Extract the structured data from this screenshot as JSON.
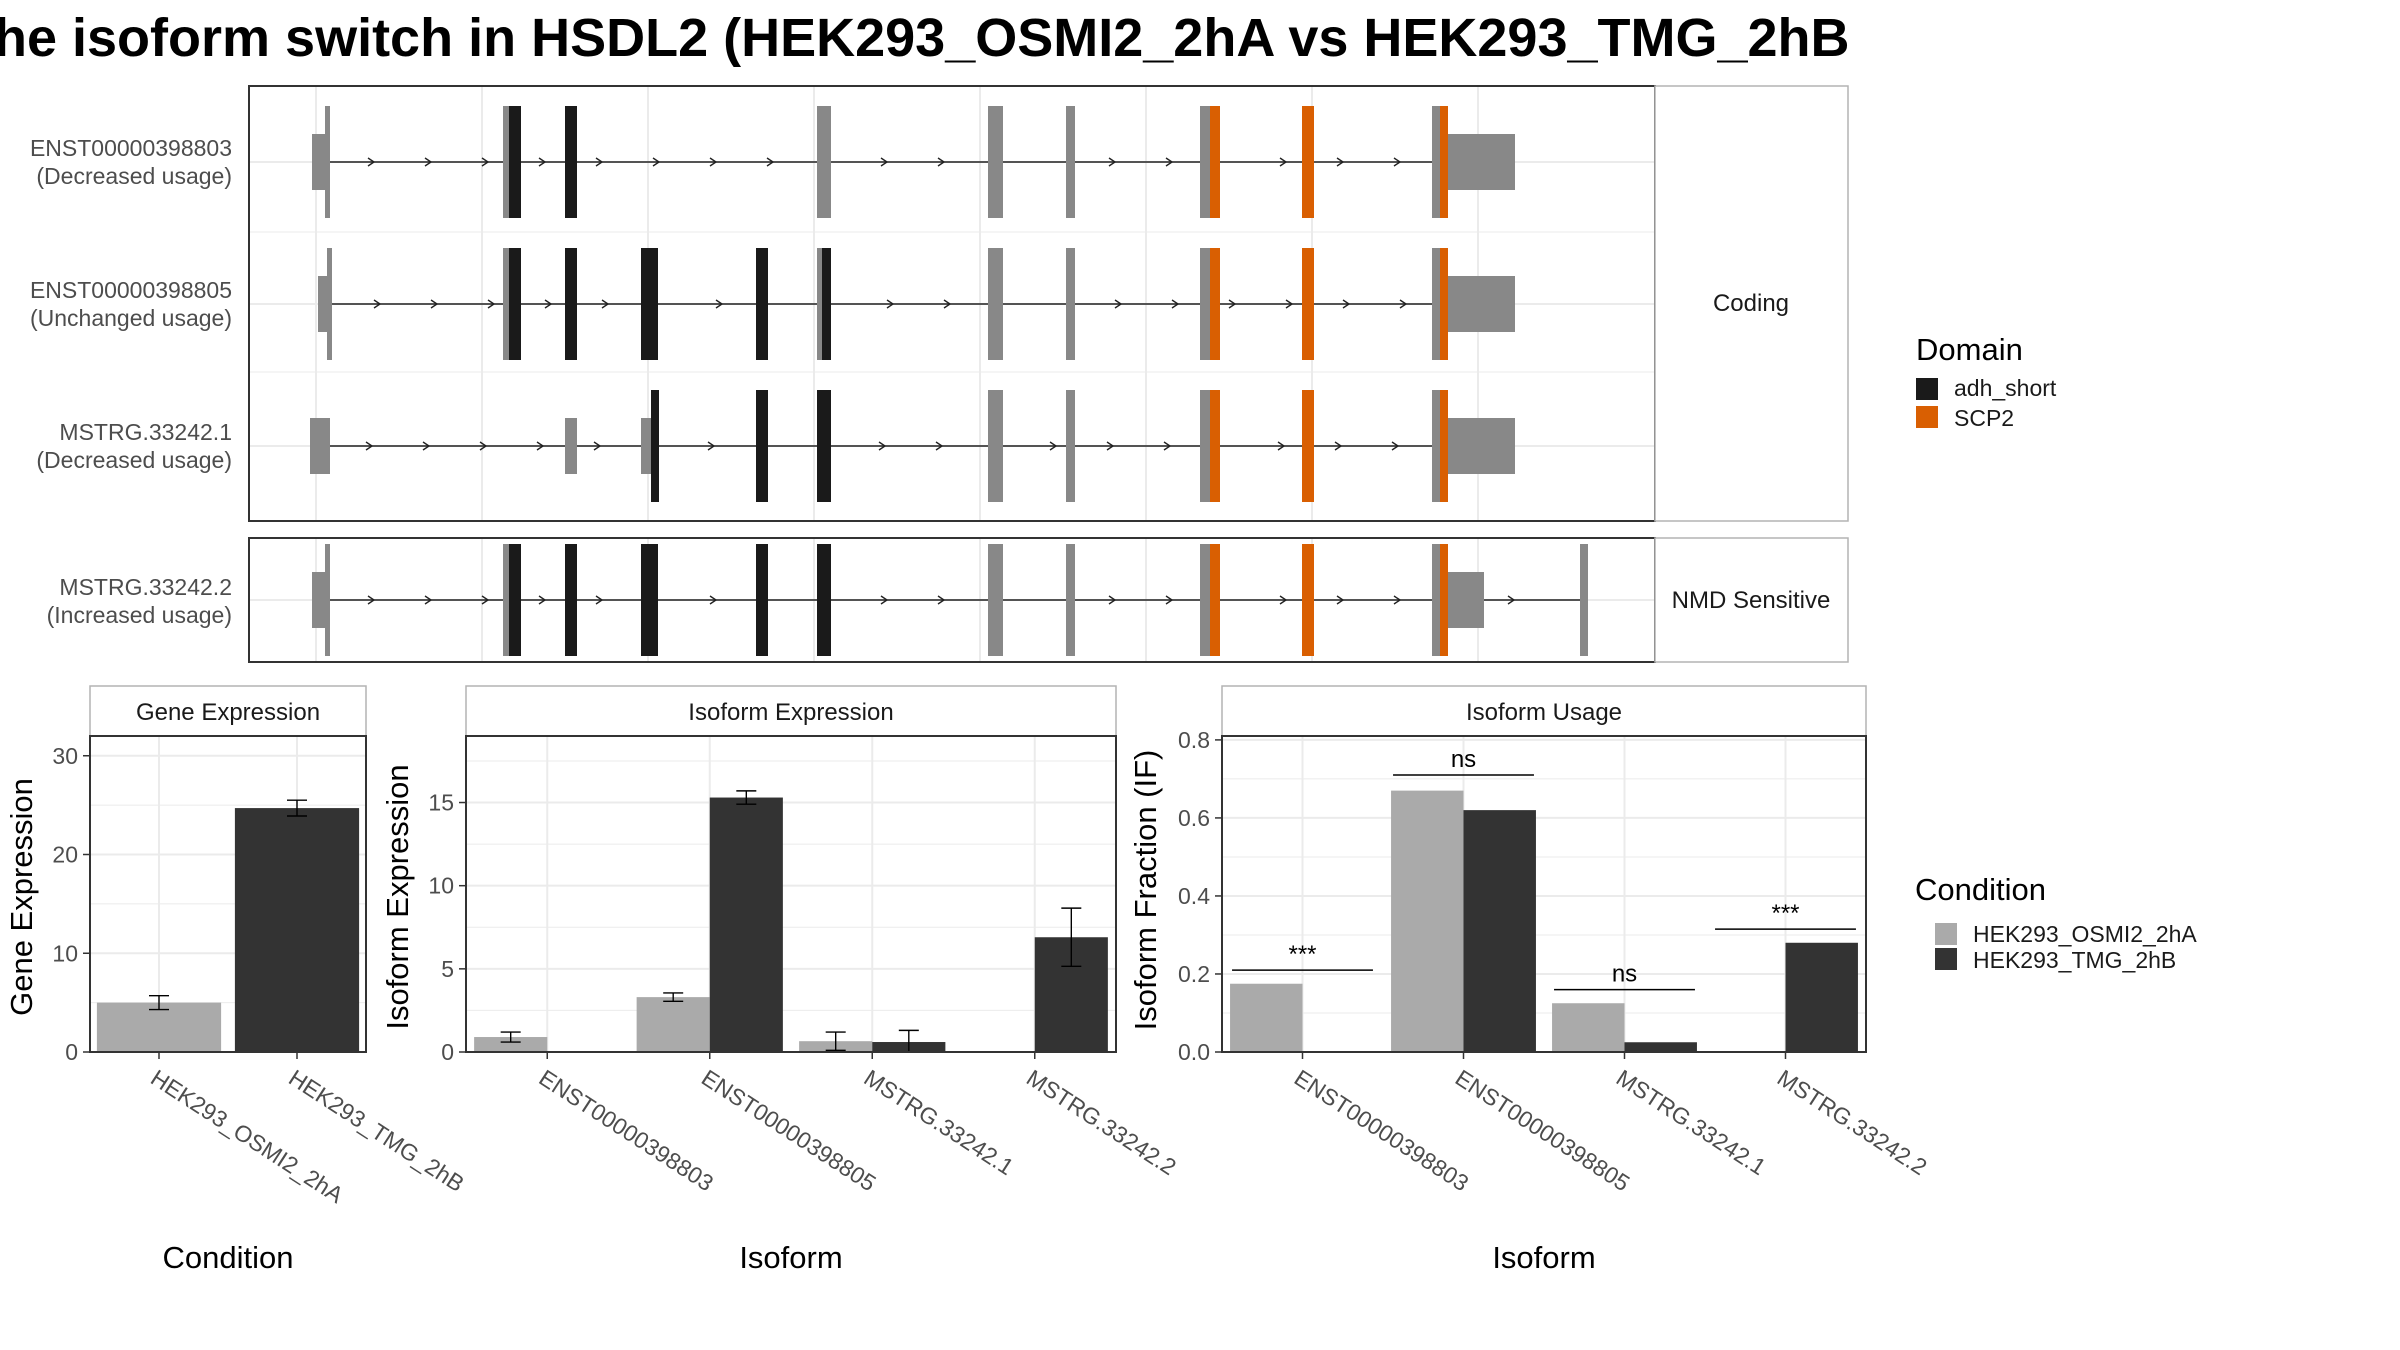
{
  "title": "he isoform switch in HSDL2 (HEK293_OSMI2_2hA vs HEK293_TMG_2hB",
  "colors": {
    "utr": "#888888",
    "adh_short": "#1a1a1a",
    "SCP2": "#d95f02",
    "cond1": "#aaaaaa",
    "cond2": "#333333",
    "panel_border": "#333333",
    "strip_border": "#b3b3b3",
    "grid": "#ebebeb"
  },
  "structure": {
    "coding_label": "Coding",
    "nmd_label": "NMD Sensitive",
    "transcripts": [
      {
        "id": "ENST00000398803",
        "usage": "(Decreased usage)",
        "group": "coding"
      },
      {
        "id": "ENST00000398805",
        "usage": "(Unchanged usage)",
        "group": "coding"
      },
      {
        "id": "MSTRG.33242.1",
        "usage": "(Decreased usage)",
        "group": "coding"
      },
      {
        "id": "MSTRG.33242.2",
        "usage": "(Increased usage)",
        "group": "nmd"
      }
    ]
  },
  "legend_domain": {
    "title": "Domain",
    "items": [
      {
        "label": "adh_short",
        "color": "#1a1a1a"
      },
      {
        "label": "SCP2",
        "color": "#d95f02"
      }
    ]
  },
  "legend_condition": {
    "title": "Condition",
    "items": [
      {
        "label": "HEK293_OSMI2_2hA",
        "color": "#aaaaaa"
      },
      {
        "label": "HEK293_TMG_2hB",
        "color": "#333333"
      }
    ]
  },
  "chart_data": [
    {
      "type": "bar",
      "title": "Gene Expression",
      "xlabel": "Condition",
      "ylabel": "Gene Expression",
      "ylim": [
        0,
        32
      ],
      "yticks": [
        0,
        10,
        20,
        30
      ],
      "categories": [
        "HEK293_OSMI2_2hA",
        "HEK293_TMG_2hB"
      ],
      "series": [
        {
          "name": "HEK293_OSMI2_2hA",
          "values": [
            5.0,
            null
          ],
          "err": [
            0.7,
            null
          ]
        },
        {
          "name": "HEK293_TMG_2hB",
          "values": [
            null,
            24.7
          ],
          "err": [
            null,
            0.8
          ]
        }
      ],
      "grid": true
    },
    {
      "type": "bar",
      "title": "Isoform Expression",
      "xlabel": "Isoform",
      "ylabel": "Isoform Expression",
      "ylim": [
        0,
        19
      ],
      "yticks": [
        0,
        5,
        10,
        15
      ],
      "categories": [
        "ENST00000398803",
        "ENST00000398805",
        "MSTRG.33242.1",
        "MSTRG.33242.2"
      ],
      "series": [
        {
          "name": "HEK293_OSMI2_2hA",
          "values": [
            0.9,
            3.3,
            0.65,
            0.0
          ],
          "err": [
            0.3,
            0.25,
            0.55,
            0.0
          ]
        },
        {
          "name": "HEK293_TMG_2hB",
          "values": [
            0.0,
            15.3,
            0.6,
            6.9
          ],
          "err": [
            0.0,
            0.4,
            0.7,
            1.75
          ]
        }
      ],
      "grid": true
    },
    {
      "type": "bar",
      "title": "Isoform Usage",
      "xlabel": "Isoform",
      "ylabel": "Isoform Fraction (IF)",
      "ylim": [
        0,
        0.81
      ],
      "yticks": [
        0.0,
        0.2,
        0.4,
        0.6,
        0.8
      ],
      "ytick_labels": [
        "0.0",
        "0.2",
        "0.4",
        "0.6",
        "0.8"
      ],
      "categories": [
        "ENST00000398803",
        "ENST00000398805",
        "MSTRG.33242.1",
        "MSTRG.33242.2"
      ],
      "series": [
        {
          "name": "HEK293_OSMI2_2hA",
          "values": [
            0.175,
            0.67,
            0.125,
            0.0
          ]
        },
        {
          "name": "HEK293_TMG_2hB",
          "values": [
            0.0,
            0.62,
            0.025,
            0.28
          ]
        }
      ],
      "annotations": [
        {
          "category": "ENST00000398803",
          "label": "***",
          "y": 0.21
        },
        {
          "category": "ENST00000398805",
          "label": "ns",
          "y": 0.71
        },
        {
          "category": "MSTRG.33242.1",
          "label": "ns",
          "y": 0.16
        },
        {
          "category": "MSTRG.33242.2",
          "label": "***",
          "y": 0.315
        }
      ],
      "grid": true
    }
  ]
}
